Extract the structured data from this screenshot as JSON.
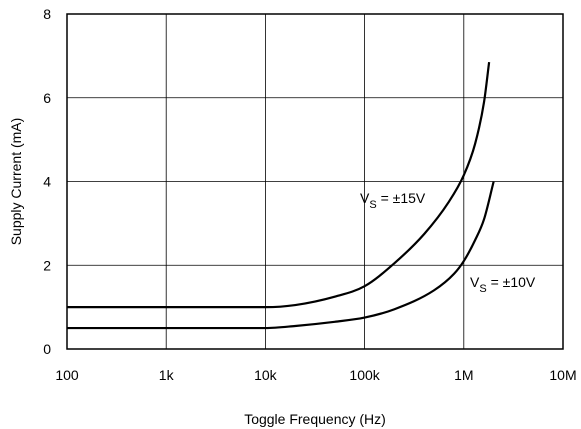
{
  "chart_data": {
    "type": "line",
    "x_scale": "log",
    "xlabel": "Toggle Frequency (Hz)",
    "ylabel": "Supply Current (mA)",
    "xlim": [
      100,
      10000000
    ],
    "ylim": [
      0,
      8
    ],
    "x_ticks": [
      100,
      1000,
      10000,
      100000,
      1000000,
      10000000
    ],
    "x_tick_labels": [
      "100",
      "1k",
      "10k",
      "100k",
      "1M",
      "10M"
    ],
    "y_ticks": [
      0,
      2,
      4,
      6,
      8
    ],
    "y_tick_labels": [
      "0",
      "2",
      "4",
      "6",
      "8"
    ],
    "grid": true,
    "legend": "none",
    "series": [
      {
        "name": "VS = ±15V",
        "label_main": "V",
        "label_sub": "S",
        "label_rest": " = ±15V",
        "x": [
          100,
          10000,
          20000,
          50000,
          100000,
          200000,
          400000,
          700000,
          1000000,
          1300000,
          1600000,
          1800000
        ],
        "y": [
          1.0,
          1.0,
          1.05,
          1.25,
          1.5,
          2.05,
          2.75,
          3.5,
          4.15,
          4.9,
          5.9,
          6.85
        ]
      },
      {
        "name": "VS = ±10V",
        "label_main": "V",
        "label_sub": "S",
        "label_rest": " = ±10V",
        "x": [
          100,
          10000,
          20000,
          50000,
          100000,
          200000,
          500000,
          800000,
          1000000,
          1300000,
          1600000,
          2000000
        ],
        "y": [
          0.5,
          0.5,
          0.55,
          0.65,
          0.75,
          0.95,
          1.4,
          1.8,
          2.1,
          2.6,
          3.1,
          4.0
        ]
      }
    ]
  }
}
